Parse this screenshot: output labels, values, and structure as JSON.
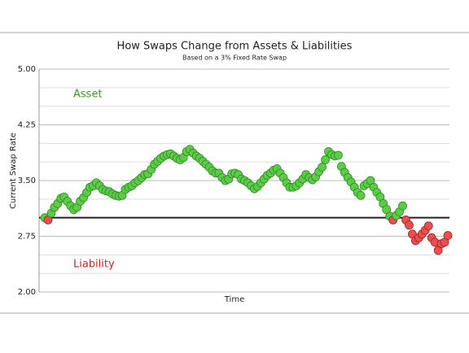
{
  "chart_data": {
    "type": "line",
    "title": "How Swaps Change from Assets & Liabilities",
    "subtitle": "Based on a 3% Fixed Rate Swap",
    "y_label": "Current Swap Rate",
    "x_label": "Time",
    "annotations": [
      {
        "text": "Asset",
        "color": "#3a9a2a"
      },
      {
        "text": "Liability",
        "color": "#e02020"
      }
    ],
    "threshold": 3.0,
    "above_color": "#5ccc48",
    "below_color": "#e85050",
    "ylim": [
      2,
      5
    ],
    "yticks": [
      {
        "value": 2,
        "label": "2.00"
      },
      {
        "value": 2.75,
        "label": "2.75"
      },
      {
        "value": 3.5,
        "label": "3.50"
      },
      {
        "value": 4.25,
        "label": "4.25"
      },
      {
        "value": 5,
        "label": "5.00"
      }
    ],
    "minor_gridlines": [
      2.25,
      2.5,
      3.25,
      3.75,
      4,
      4.5,
      4.75
    ],
    "grid": true,
    "values": [
      3.0,
      2.97,
      3.06,
      3.14,
      3.19,
      3.26,
      3.28,
      3.22,
      3.16,
      3.11,
      3.14,
      3.22,
      3.27,
      3.34,
      3.41,
      3.43,
      3.47,
      3.43,
      3.38,
      3.36,
      3.35,
      3.32,
      3.3,
      3.29,
      3.3,
      3.38,
      3.41,
      3.43,
      3.47,
      3.5,
      3.54,
      3.58,
      3.59,
      3.65,
      3.72,
      3.76,
      3.8,
      3.83,
      3.85,
      3.86,
      3.83,
      3.8,
      3.78,
      3.81,
      3.89,
      3.92,
      3.87,
      3.83,
      3.8,
      3.76,
      3.72,
      3.68,
      3.63,
      3.6,
      3.6,
      3.54,
      3.5,
      3.52,
      3.59,
      3.6,
      3.58,
      3.52,
      3.5,
      3.47,
      3.43,
      3.39,
      3.42,
      3.47,
      3.52,
      3.57,
      3.6,
      3.64,
      3.66,
      3.6,
      3.54,
      3.47,
      3.41,
      3.41,
      3.43,
      3.47,
      3.52,
      3.58,
      3.54,
      3.51,
      3.55,
      3.62,
      3.68,
      3.78,
      3.89,
      3.85,
      3.83,
      3.84,
      3.69,
      3.61,
      3.54,
      3.48,
      3.41,
      3.34,
      3.3,
      3.43,
      3.46,
      3.5,
      3.41,
      3.34,
      3.28,
      3.19,
      3.11,
      3.02,
      2.97,
      3.03,
      3.08,
      3.16,
      2.97,
      2.9,
      2.78,
      2.69,
      2.73,
      2.78,
      2.83,
      2.89,
      2.73,
      2.67,
      2.56,
      2.65,
      2.67,
      2.76
    ]
  }
}
